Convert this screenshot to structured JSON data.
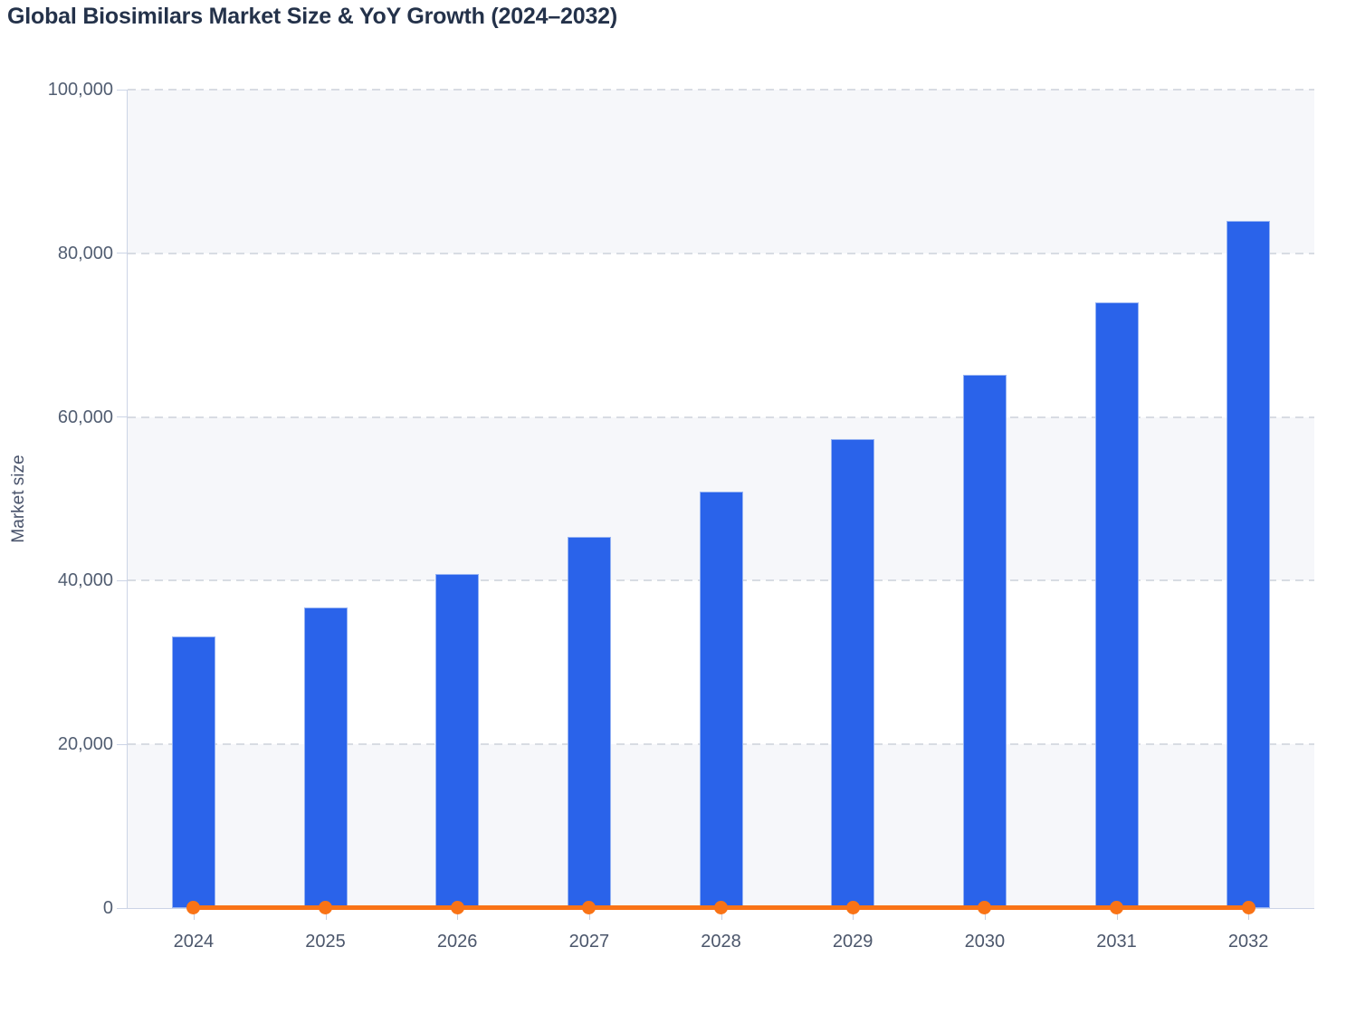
{
  "title": "Global Biosimilars Market Size & YoY Growth (2024–2032)",
  "chart_data": {
    "type": "bar",
    "title": "Global Biosimilars Market Size & YoY Growth (2024–2032)",
    "categories": [
      "2024",
      "2025",
      "2026",
      "2027",
      "2028",
      "2029",
      "2030",
      "2031",
      "2032"
    ],
    "series": [
      {
        "name": "Market size",
        "type": "bar",
        "color": "#2a63ea",
        "values": [
          33200,
          36700,
          40800,
          45400,
          50900,
          57300,
          65200,
          74000,
          84000
        ]
      },
      {
        "name": "YoY growth",
        "type": "line",
        "color": "#f97316",
        "values": [
          0,
          10.5,
          11.2,
          11.3,
          12.1,
          12.6,
          13.9,
          13.4,
          13.7
        ],
        "note": "plotted on the same 0–100,000 axis so it renders flat along the baseline with round markers at each year"
      }
    ],
    "xlabel": "",
    "ylabel": "Market size",
    "ylim": [
      0,
      100000
    ],
    "ytick_step": 20000,
    "ytick_labels": [
      "0",
      "20,000",
      "40,000",
      "60,000",
      "80,000",
      "100,000"
    ],
    "grid": "horizontal dashed lines every 20,000",
    "split_bands": "alternating light-gray bands starting at 0–20,000",
    "legend_position": "none"
  },
  "colors": {
    "bar_blue": "#2a63ea",
    "line_orange": "#f97316",
    "band_gray": "#f6f7fa",
    "axis_line": "#ccd4e6",
    "gridline": "#d8dce3",
    "title_text": "#24324a",
    "tick_text": "#525e72"
  }
}
